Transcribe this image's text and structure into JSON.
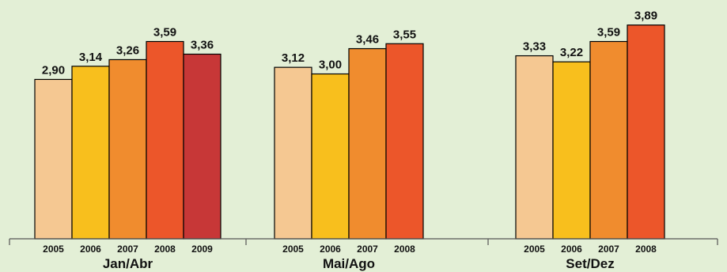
{
  "chart_data": {
    "type": "bar",
    "ylim": [
      0,
      4.0
    ],
    "grid": false,
    "legend": "none",
    "year_colors": {
      "2005": "#f5c892",
      "2006": "#f8bf1d",
      "2007": "#f08c2e",
      "2008": "#ec562a",
      "2009": "#c73737"
    },
    "groups": [
      {
        "label": "Jan/Abr",
        "bars": [
          {
            "year": "2005",
            "value": 2.9,
            "label": "2,90"
          },
          {
            "year": "2006",
            "value": 3.14,
            "label": "3,14"
          },
          {
            "year": "2007",
            "value": 3.26,
            "label": "3,26"
          },
          {
            "year": "2008",
            "value": 3.59,
            "label": "3,59"
          },
          {
            "year": "2009",
            "value": 3.36,
            "label": "3,36"
          }
        ]
      },
      {
        "label": "Mai/Ago",
        "bars": [
          {
            "year": "2005",
            "value": 3.12,
            "label": "3,12"
          },
          {
            "year": "2006",
            "value": 3.0,
            "label": "3,00"
          },
          {
            "year": "2007",
            "value": 3.46,
            "label": "3,46"
          },
          {
            "year": "2008",
            "value": 3.55,
            "label": "3,55"
          }
        ]
      },
      {
        "label": "Set/Dez",
        "bars": [
          {
            "year": "2005",
            "value": 3.33,
            "label": "3,33"
          },
          {
            "year": "2006",
            "value": 3.22,
            "label": "3,22"
          },
          {
            "year": "2007",
            "value": 3.59,
            "label": "3,59"
          },
          {
            "year": "2008",
            "value": 3.89,
            "label": "3,89"
          }
        ]
      }
    ]
  }
}
